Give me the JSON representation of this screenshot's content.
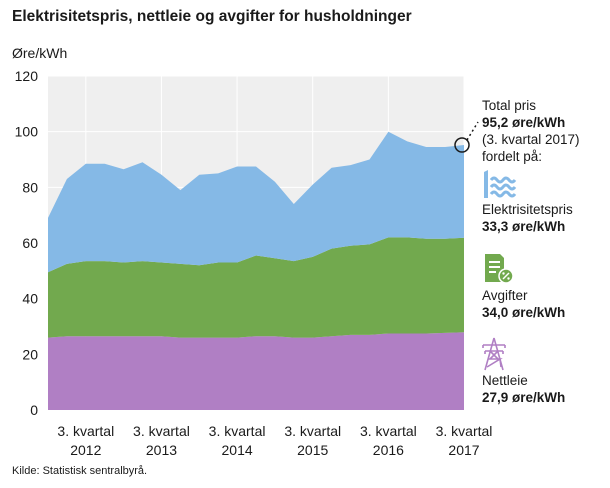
{
  "title": "Elektrisitetspris, nettleie og avgifter for husholdninger",
  "y_unit": "Øre/kWh",
  "source": "Kilde: Statistisk sentralbyrå.",
  "colors": {
    "elektrisitet": "#85b9e6",
    "avgifter": "#72a94e",
    "nettleie": "#b07fc4",
    "plot_bg": "#efefef",
    "grid": "#ffffff"
  },
  "annotation": {
    "total_label": "Total pris",
    "total_value": "95,2 øre/kWh",
    "total_period": "(3. kvartal 2017)",
    "total_suffix": "fordelt på:",
    "items": [
      {
        "label": "Elektrisitetspris",
        "value": "33,3 øre/kWh",
        "icon": "water-waves-icon"
      },
      {
        "label": "Avgifter",
        "value": "34,0 øre/kWh",
        "icon": "tax-document-icon"
      },
      {
        "label": "Nettleie",
        "value": "27,9 øre/kWh",
        "icon": "power-pylon-icon"
      }
    ]
  },
  "chart_data": {
    "type": "area",
    "stacked": true,
    "ylabel": "Øre/kWh",
    "ylim": [
      0,
      120
    ],
    "yticks": [
      0,
      20,
      40,
      60,
      80,
      100,
      120
    ],
    "grid": true,
    "x_quarters": [
      "2012K1",
      "2012K2",
      "2012K3",
      "2012K4",
      "2013K1",
      "2013K2",
      "2013K3",
      "2013K4",
      "2014K1",
      "2014K2",
      "2014K3",
      "2014K4",
      "2015K1",
      "2015K2",
      "2015K3",
      "2015K4",
      "2016K1",
      "2016K2",
      "2016K3",
      "2016K4",
      "2017K1",
      "2017K2",
      "2017K3"
    ],
    "x_tick_labels": [
      {
        "index": 2,
        "line1": "3. kvartal",
        "line2": "2012"
      },
      {
        "index": 6,
        "line1": "3. kvartal",
        "line2": "2013"
      },
      {
        "index": 10,
        "line1": "3. kvartal",
        "line2": "2014"
      },
      {
        "index": 14,
        "line1": "3. kvartal",
        "line2": "2015"
      },
      {
        "index": 18,
        "line1": "3. kvartal",
        "line2": "2016"
      },
      {
        "index": 22,
        "line1": "3. kvartal",
        "line2": "2017"
      }
    ],
    "series": [
      {
        "name": "Nettleie",
        "values": [
          26.0,
          26.5,
          26.5,
          26.5,
          26.5,
          26.5,
          26.5,
          26.0,
          26.0,
          26.0,
          26.0,
          26.5,
          26.5,
          26.0,
          26.0,
          26.5,
          27.0,
          27.0,
          27.5,
          27.5,
          27.5,
          27.7,
          27.9
        ]
      },
      {
        "name": "Avgifter",
        "values": [
          23.5,
          26.0,
          27.0,
          27.0,
          26.5,
          27.0,
          26.5,
          26.5,
          26.0,
          27.0,
          27.0,
          29.0,
          28.0,
          27.5,
          29.0,
          31.5,
          32.0,
          32.5,
          34.5,
          34.5,
          34.0,
          33.8,
          34.0
        ]
      },
      {
        "name": "Elektrisitetspris",
        "values": [
          19.5,
          30.5,
          35.0,
          35.0,
          33.5,
          35.5,
          31.5,
          26.5,
          32.5,
          32.0,
          34.5,
          32.0,
          27.5,
          20.5,
          26.0,
          29.0,
          29.0,
          30.5,
          38.0,
          34.5,
          33.0,
          33.0,
          33.3
        ]
      }
    ]
  }
}
